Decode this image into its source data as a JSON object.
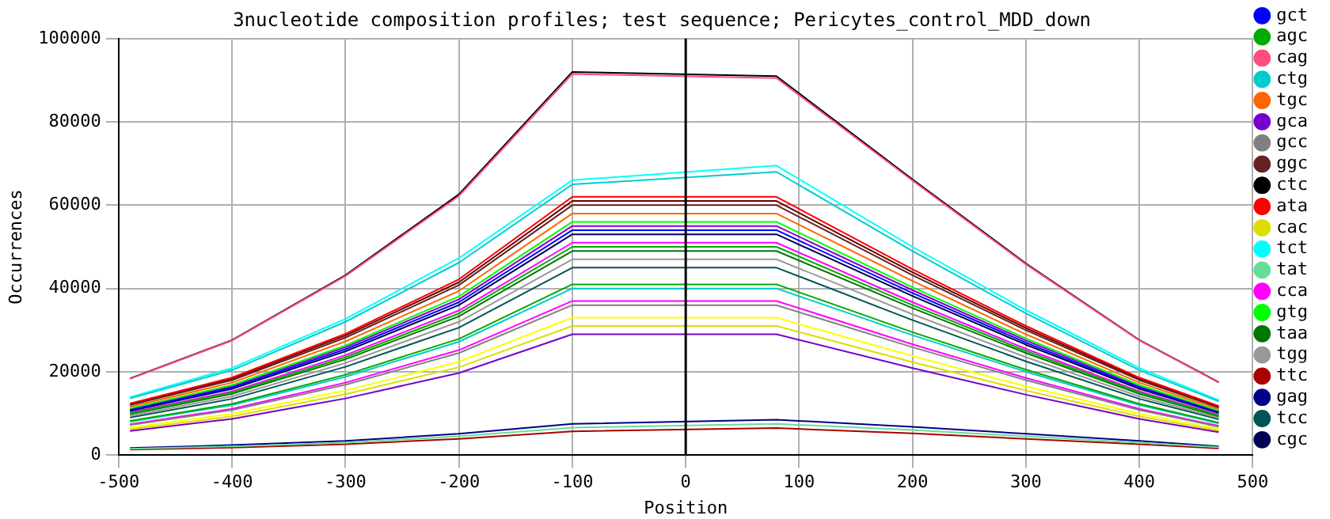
{
  "chart_data": {
    "type": "line",
    "title": "3nucleotide composition profiles; test sequence; Pericytes_control_MDD_down",
    "xlabel": "Position",
    "ylabel": "Occurrences",
    "x": [
      -490,
      -400,
      -300,
      -200,
      -100,
      80,
      200,
      300,
      400,
      470
    ],
    "xlim": [
      -500,
      500
    ],
    "xticks": [
      -500,
      -400,
      -300,
      -200,
      -100,
      0,
      100,
      200,
      300,
      400,
      500
    ],
    "ylim": [
      0,
      100000
    ],
    "yticks": [
      0,
      20000,
      40000,
      60000,
      80000,
      100000
    ],
    "grid": true,
    "legend": "right",
    "marker": "none",
    "line_style": "solid",
    "ref_lines": [
      {
        "axis": "x",
        "value": 0,
        "color": "#000000"
      }
    ],
    "series": [
      {
        "name": "gct",
        "color": "#0000ff",
        "values": [
          10800,
          16200,
          25400,
          36700,
          54000,
          54000,
          38900,
          27000,
          16200,
          10300
        ]
      },
      {
        "name": "agc",
        "color": "#00aa00",
        "values": [
          10000,
          15000,
          23500,
          34000,
          50000,
          50000,
          36000,
          25000,
          15000,
          9500
        ]
      },
      {
        "name": "cag",
        "color": "#ff4d80",
        "values": [
          18300,
          27500,
          43000,
          62200,
          91500,
          90500,
          65900,
          45800,
          27500,
          17400
        ]
      },
      {
        "name": "ctg",
        "color": "#00cccc",
        "values": [
          13600,
          20400,
          32000,
          46200,
          65000,
          68000,
          49000,
          34000,
          20400,
          12900
        ]
      },
      {
        "name": "tgc",
        "color": "#ff6600",
        "values": [
          11600,
          17400,
          27300,
          39400,
          58000,
          58000,
          41800,
          29000,
          17400,
          11000
        ]
      },
      {
        "name": "gca",
        "color": "#7700cc",
        "values": [
          5800,
          8700,
          13600,
          19700,
          29000,
          29000,
          20900,
          14500,
          8700,
          5500
        ]
      },
      {
        "name": "gcc",
        "color": "#808080",
        "values": [
          7200,
          10800,
          16900,
          24500,
          36000,
          36000,
          25900,
          18000,
          10800,
          6800
        ]
      },
      {
        "name": "ggc",
        "color": "#662222",
        "values": [
          12000,
          18000,
          28200,
          40800,
          60000,
          60000,
          43200,
          30000,
          18000,
          11400
        ]
      },
      {
        "name": "ctc",
        "color": "#000000",
        "values": [
          18400,
          27600,
          43200,
          62600,
          92000,
          91000,
          66200,
          46000,
          27600,
          17500
        ]
      },
      {
        "name": "ata",
        "color": "#ff0000",
        "values": [
          12400,
          18600,
          29100,
          42200,
          62000,
          62000,
          44600,
          31000,
          18600,
          11800
        ]
      },
      {
        "name": "cac",
        "color": "#dddd00",
        "values": [
          6200,
          9300,
          14600,
          21100,
          31000,
          31000,
          22300,
          15500,
          9300,
          5900
        ]
      },
      {
        "name": "tct",
        "color": "#00ffff",
        "values": [
          13900,
          20900,
          32700,
          47300,
          66000,
          69500,
          50000,
          34800,
          20900,
          13200
        ]
      },
      {
        "name": "tat",
        "color": "#66dd99",
        "values": [
          1500,
          2100,
          3000,
          4500,
          6600,
          7500,
          6000,
          4500,
          3000,
          1900
        ]
      },
      {
        "name": "cca",
        "color": "#ff00ff",
        "values": [
          7400,
          11100,
          17400,
          25200,
          37000,
          37000,
          26600,
          18500,
          11100,
          7000
        ]
      },
      {
        "name": "gtg",
        "color": "#00ff00",
        "values": [
          11200,
          16800,
          26300,
          38100,
          56000,
          56000,
          40300,
          28000,
          16800,
          10600
        ]
      },
      {
        "name": "taa",
        "color": "#007700",
        "values": [
          9800,
          14700,
          23000,
          33300,
          49000,
          49000,
          35300,
          24500,
          14700,
          9300
        ]
      },
      {
        "name": "tgg",
        "color": "#999999",
        "values": [
          9400,
          14100,
          22100,
          32000,
          47000,
          47000,
          33800,
          23500,
          14100,
          8900
        ]
      },
      {
        "name": "ttc",
        "color": "#aa0000",
        "values": [
          1300,
          1800,
          2600,
          3900,
          5700,
          6500,
          5200,
          3900,
          2600,
          1600
        ]
      },
      {
        "name": "gag",
        "color": "#000088",
        "values": [
          1700,
          2400,
          3400,
          5100,
          7500,
          8500,
          6800,
          5100,
          3400,
          2100
        ]
      },
      {
        "name": "tcc",
        "color": "#005555",
        "values": [
          9000,
          13500,
          21200,
          30600,
          45000,
          45000,
          32400,
          22500,
          13500,
          8600
        ]
      },
      {
        "name": "cgc",
        "color": "#000055",
        "values": [
          10600,
          15900,
          24900,
          36000,
          53000,
          53000,
          38200,
          26500,
          15900,
          10100
        ]
      },
      {
        "color": "#660000",
        "values": [
          12200,
          18300,
          28700,
          41500,
          61000,
          61000,
          43900,
          30500,
          18300,
          11600
        ]
      },
      {
        "color": "#8800cc",
        "values": [
          11000,
          16500,
          25900,
          37400,
          55000,
          55000,
          39600,
          27500,
          16500,
          10500
        ]
      },
      {
        "color": "#ff00ff",
        "values": [
          10200,
          15300,
          24000,
          34700,
          51000,
          51000,
          36700,
          25500,
          15300,
          9700
        ]
      },
      {
        "color": "#00aa00",
        "values": [
          8200,
          12300,
          19300,
          27900,
          41000,
          41000,
          29500,
          20500,
          12300,
          7800
        ]
      },
      {
        "color": "#ffff00",
        "values": [
          6600,
          9900,
          15500,
          22400,
          33000,
          33000,
          23800,
          16500,
          9900,
          6300
        ]
      },
      {
        "color": "#00cccc",
        "values": [
          8000,
          12000,
          18800,
          27200,
          40000,
          40000,
          28800,
          20000,
          12000,
          7600
        ]
      }
    ]
  }
}
